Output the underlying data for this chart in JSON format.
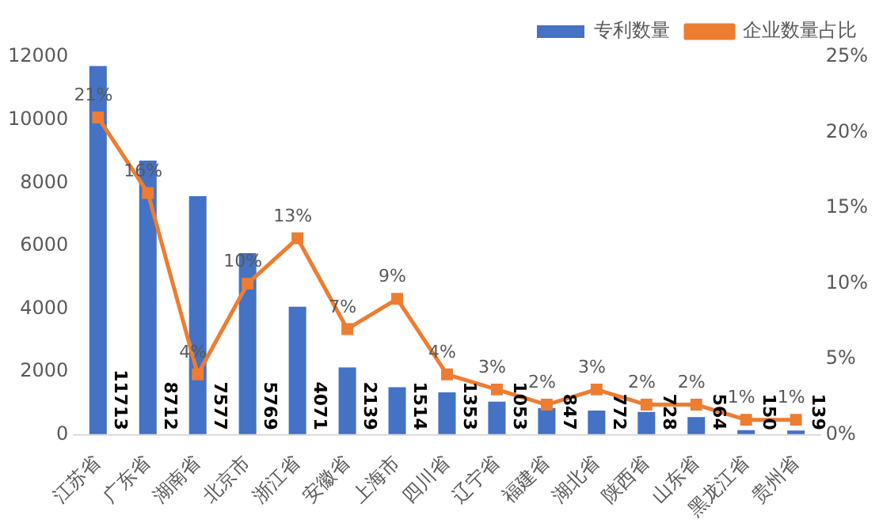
{
  "chart_data": {
    "type": "bar",
    "categories": [
      "江苏省",
      "广东省",
      "湖南省",
      "北京市",
      "浙江省",
      "安徽省",
      "上海市",
      "四川省",
      "辽宁省",
      "福建省",
      "湖北省",
      "陕西省",
      "山东省",
      "黑龙江省",
      "贵州省"
    ],
    "series": [
      {
        "name": "专利数量",
        "color": "#4472c4",
        "values": [
          11713,
          8712,
          7577,
          5769,
          4071,
          2139,
          1514,
          1353,
          1053,
          847,
          772,
          728,
          564,
          150,
          139
        ],
        "value_labels": [
          "11713",
          "8712",
          "7577",
          "5769",
          "4071",
          "2139",
          "1514",
          "1353",
          "1053",
          "847",
          "772",
          "728",
          "564",
          "150",
          "139"
        ]
      },
      {
        "name": "企业数量占比",
        "type": "line",
        "axis": "y2",
        "color": "#ed7d31",
        "marker": "square",
        "values": [
          21,
          16,
          4,
          10,
          13,
          7,
          9,
          4,
          3,
          2,
          3,
          2,
          2,
          1,
          1
        ],
        "value_labels": [
          "21%",
          "16%",
          "4%",
          "10%",
          "13%",
          "7%",
          "9%",
          "4%",
          "3%",
          "2%",
          "3%",
          "2%",
          "2%",
          "1%",
          "1%"
        ]
      }
    ],
    "ylim": [
      0,
      12000
    ],
    "yticks": [
      0,
      2000,
      4000,
      6000,
      8000,
      10000,
      12000
    ],
    "y2lim": [
      0,
      25
    ],
    "y2ticks": [
      {
        "value": 0,
        "label": "0%"
      },
      {
        "value": 5,
        "label": "5%"
      },
      {
        "value": 10,
        "label": "10%"
      },
      {
        "value": 15,
        "label": "15%"
      },
      {
        "value": 20,
        "label": "20%"
      },
      {
        "value": 25,
        "label": "25%"
      }
    ],
    "grid": false,
    "legend": "top right"
  }
}
